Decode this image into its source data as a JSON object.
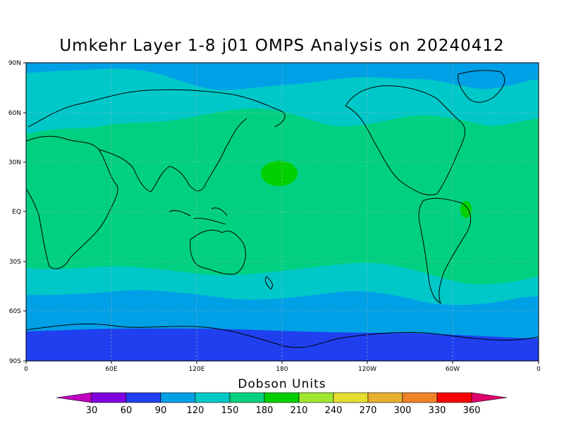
{
  "title": "Umkehr Layer 1-8 j01 OMPS Analysis on 20240412",
  "colorbar": {
    "title": "Dobson Units",
    "labels": [
      "30",
      "60",
      "90",
      "120",
      "150",
      "180",
      "210",
      "240",
      "270",
      "300",
      "330",
      "360"
    ],
    "low_color": "#c000c0",
    "colors": [
      "#8000e0",
      "#2040f0",
      "#00a0e6",
      "#00c8c8",
      "#00d080",
      "#00d000",
      "#a0e632",
      "#e6dc32",
      "#e6af2d",
      "#f08228",
      "#fa0000"
    ],
    "high_color": "#e0006e"
  },
  "axes": {
    "lat_labels": [
      "90N",
      "60N",
      "30N",
      "EQ",
      "30S",
      "60S",
      "90S"
    ],
    "lon_labels": [
      "0",
      "60E",
      "120E",
      "180",
      "120W",
      "60W",
      "0"
    ]
  },
  "chart_data": {
    "type": "heatmap",
    "title": "Umkehr Layer 1-8 j01 OMPS Analysis on 20240412",
    "units": "Dobson Units",
    "projection": "cylindrical-equidistant",
    "lon_range": [
      0,
      360
    ],
    "lat_range": [
      -90,
      90
    ],
    "grid": true,
    "zonal_bands": [
      {
        "lat_range": [
          -90,
          -76
        ],
        "level_dobson": [
          60,
          90
        ]
      },
      {
        "lat_range": [
          -76,
          -55
        ],
        "level_dobson": [
          90,
          120
        ]
      },
      {
        "lat_range": [
          -55,
          -40
        ],
        "level_dobson": [
          120,
          150
        ]
      },
      {
        "lat_range": [
          -40,
          52
        ],
        "level_dobson": [
          150,
          180
        ]
      },
      {
        "lat_range": [
          52,
          75
        ],
        "level_dobson": [
          120,
          150
        ]
      },
      {
        "lat_range": [
          75,
          90
        ],
        "level_dobson": [
          90,
          120
        ]
      }
    ],
    "local_maxima": [
      {
        "lon": 178,
        "lat": 23,
        "level_dobson": [
          180,
          210
        ]
      },
      {
        "lon": 310,
        "lat": 0,
        "level_dobson": [
          180,
          210
        ]
      }
    ]
  }
}
